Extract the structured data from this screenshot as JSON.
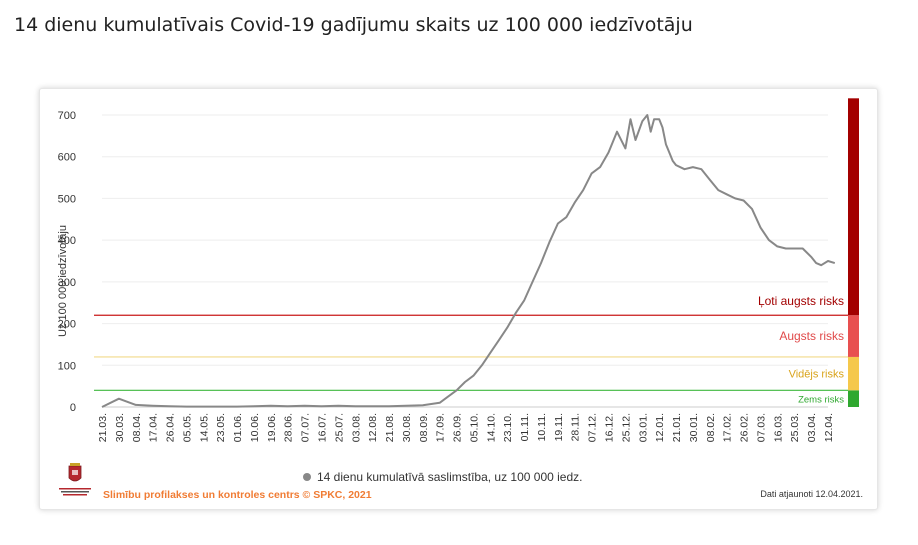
{
  "page": {
    "title": "14 dienu kumulatīvais Covid-19 gadījumu skaits uz 100 000 iedzīvotāju"
  },
  "footer": {
    "credit": "Slimību profilakses un kontroles centrs © SPKC, 2021",
    "updated": "Dati atjaunoti 12.04.2021."
  },
  "colors": {
    "line": "#888888",
    "very_high": "#a30000",
    "high": "#e85050",
    "medium": "#f5c84c",
    "low": "#2fa82f",
    "very_high_line": "#c91a1a",
    "medium_line": "#f2d98a",
    "low_line": "#3fb83f",
    "credit_text": "#f07c34"
  },
  "chart_data": {
    "type": "line",
    "ylabel": "Uz 100 000 iedzīvotāju",
    "ylim": [
      0,
      700
    ],
    "yticks": [
      0,
      100,
      200,
      300,
      400,
      500,
      600,
      700
    ],
    "x_tick_labels": [
      "21.03.",
      "30.03.",
      "08.04.",
      "17.04.",
      "26.04.",
      "05.05.",
      "14.05.",
      "23.05.",
      "01.06.",
      "10.06.",
      "19.06.",
      "28.06.",
      "07.07.",
      "16.07.",
      "25.07.",
      "03.08.",
      "12.08.",
      "21.08.",
      "30.08.",
      "08.09.",
      "17.09.",
      "26.09.",
      "05.10.",
      "14.10.",
      "23.10.",
      "01.11.",
      "10.11.",
      "19.11.",
      "28.11.",
      "07.12.",
      "16.12.",
      "25.12.",
      "03.01.",
      "12.01.",
      "21.01.",
      "30.01.",
      "08.02.",
      "17.02.",
      "26.02.",
      "07.03.",
      "16.03.",
      "25.03.",
      "03.04.",
      "12.04."
    ],
    "series": [
      {
        "name": "14 dienu kumulatīvā saslimstība, uz 100 000 iedz.",
        "x": [
          0,
          1,
          2,
          3,
          4,
          5,
          6,
          7,
          8,
          9,
          10,
          11,
          12,
          13,
          14,
          15,
          16,
          17,
          18,
          19,
          20,
          20.5,
          21,
          21.5,
          22,
          22.5,
          23,
          23.5,
          24,
          24.5,
          25,
          25.5,
          26,
          26.5,
          27,
          27.5,
          28,
          28.5,
          29,
          29.5,
          30,
          30.5,
          31,
          31.3,
          31.6,
          32,
          32.3,
          32.5,
          32.7,
          33,
          33.2,
          33.4,
          33.6,
          33.8,
          34,
          34.5,
          35,
          35.5,
          36,
          36.5,
          37,
          37.5,
          38,
          38.5,
          39,
          39.5,
          40,
          40.5,
          41,
          41.5,
          42,
          42.3,
          42.6,
          43,
          43.4
        ],
        "y": [
          0,
          20,
          5,
          3,
          2,
          1,
          1,
          1,
          1,
          2,
          3,
          2,
          3,
          2,
          3,
          2,
          2,
          2,
          3,
          4,
          10,
          25,
          40,
          60,
          75,
          100,
          130,
          160,
          190,
          225,
          255,
          300,
          345,
          395,
          440,
          455,
          490,
          520,
          560,
          575,
          610,
          660,
          620,
          690,
          640,
          685,
          700,
          660,
          690,
          690,
          670,
          630,
          610,
          590,
          580,
          570,
          575,
          570,
          545,
          520,
          510,
          500,
          495,
          475,
          430,
          400,
          385,
          380,
          380,
          380,
          360,
          345,
          340,
          350,
          345
        ]
      }
    ],
    "risk_levels": [
      {
        "label": "Zems risks",
        "from": 0,
        "to": 40
      },
      {
        "label": "Vidējs risks",
        "from": 40,
        "to": 120
      },
      {
        "label": "Augsts risks",
        "from": 120,
        "to": 220
      },
      {
        "label": "Ļoti augsts risks",
        "from": 220,
        "to": 740
      }
    ],
    "grid": "horizontal",
    "legend_position": "bottom"
  }
}
